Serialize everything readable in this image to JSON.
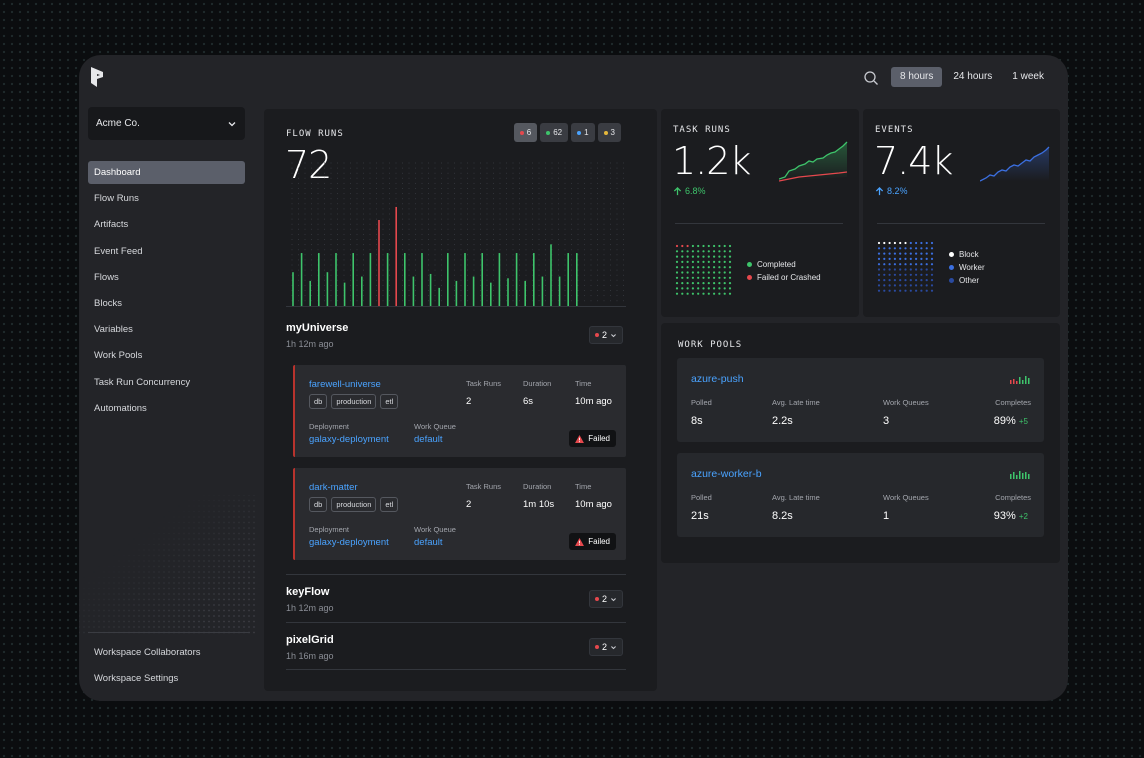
{
  "header": {
    "logo": "prefect-logo-icon",
    "time_ranges": [
      {
        "label": "8 hours",
        "active": true
      },
      {
        "label": "24 hours",
        "active": false
      },
      {
        "label": "1 week",
        "active": false
      }
    ]
  },
  "sidebar": {
    "workspace": "Acme Co.",
    "items": [
      {
        "label": "Dashboard",
        "active": true
      },
      {
        "label": "Flow Runs"
      },
      {
        "label": "Artifacts"
      },
      {
        "label": "Event Feed"
      },
      {
        "label": "Flows"
      },
      {
        "label": "Blocks"
      },
      {
        "label": "Variables"
      },
      {
        "label": "Work Pools"
      },
      {
        "label": "Task Run Concurrency"
      },
      {
        "label": "Automations"
      }
    ],
    "bottom_items": [
      {
        "label": "Workspace Collaborators"
      },
      {
        "label": "Workspace Settings"
      }
    ]
  },
  "flow_runs": {
    "title": "FLOW RUNS",
    "total": "72",
    "chips": [
      {
        "label": "6",
        "color": "#e5484d"
      },
      {
        "label": "62",
        "color": "#3ec46b"
      },
      {
        "label": "1",
        "color": "#4aa3ff"
      },
      {
        "label": "3",
        "color": "#e5b73b"
      }
    ],
    "bars": [
      {
        "v": 0.4,
        "s": "ok"
      },
      {
        "v": 0.62,
        "s": "ok"
      },
      {
        "v": 0.3,
        "s": "ok"
      },
      {
        "v": 0.62,
        "s": "ok"
      },
      {
        "v": 0.4,
        "s": "ok"
      },
      {
        "v": 0.62,
        "s": "ok"
      },
      {
        "v": 0.28,
        "s": "ok"
      },
      {
        "v": 0.62,
        "s": "ok"
      },
      {
        "v": 0.35,
        "s": "ok"
      },
      {
        "v": 0.62,
        "s": "ok"
      },
      {
        "v": 1.0,
        "s": "fail"
      },
      {
        "v": 0.62,
        "s": "ok"
      },
      {
        "v": 1.15,
        "s": "fail"
      },
      {
        "v": 0.62,
        "s": "ok"
      },
      {
        "v": 0.35,
        "s": "ok"
      },
      {
        "v": 0.62,
        "s": "ok"
      },
      {
        "v": 0.38,
        "s": "ok"
      },
      {
        "v": 0.22,
        "s": "ok"
      },
      {
        "v": 0.62,
        "s": "ok"
      },
      {
        "v": 0.3,
        "s": "ok"
      },
      {
        "v": 0.62,
        "s": "ok"
      },
      {
        "v": 0.35,
        "s": "ok"
      },
      {
        "v": 0.62,
        "s": "ok"
      },
      {
        "v": 0.28,
        "s": "ok"
      },
      {
        "v": 0.62,
        "s": "ok"
      },
      {
        "v": 0.33,
        "s": "ok"
      },
      {
        "v": 0.62,
        "s": "ok"
      },
      {
        "v": 0.3,
        "s": "ok"
      },
      {
        "v": 0.62,
        "s": "ok"
      },
      {
        "v": 0.35,
        "s": "ok"
      },
      {
        "v": 0.72,
        "s": "ok"
      },
      {
        "v": 0.35,
        "s": "ok"
      },
      {
        "v": 0.62,
        "s": "ok"
      },
      {
        "v": 0.62,
        "s": "ok"
      }
    ],
    "flows": [
      {
        "name": "myUniverse",
        "age": "1h 12m ago",
        "count": "2"
      },
      {
        "name": "keyFlow",
        "age": "1h 12m ago",
        "count": "2"
      },
      {
        "name": "pixelGrid",
        "age": "1h 16m ago",
        "count": "2"
      }
    ],
    "runs": [
      {
        "name": "farewell-universe",
        "tags": [
          "db",
          "production",
          "etl"
        ],
        "task_runs_label": "Task Runs",
        "task_runs": "2",
        "duration_label": "Duration",
        "duration": "6s",
        "time_label": "Time",
        "time": "10m ago",
        "deployment_label": "Deployment",
        "deployment": "galaxy-deployment",
        "queue_label": "Work Queue",
        "queue": "default",
        "state": "Failed"
      },
      {
        "name": "dark-matter",
        "tags": [
          "db",
          "production",
          "etl"
        ],
        "task_runs_label": "Task Runs",
        "task_runs": "2",
        "duration_label": "Duration",
        "duration": "1m 10s",
        "time_label": "Time",
        "time": "10m ago",
        "deployment_label": "Deployment",
        "deployment": "galaxy-deployment",
        "queue_label": "Work Queue",
        "queue": "default",
        "state": "Failed"
      }
    ]
  },
  "task_runs": {
    "title": "TASK RUNS",
    "total": "1.2k",
    "trend": "6.8%",
    "legend": [
      "Completed",
      "Failed or Crashed"
    ],
    "colors": {
      "completed": "#3ec46b",
      "failed": "#e5484d"
    }
  },
  "events": {
    "title": "EVENTS",
    "total": "7.4k",
    "trend": "8.2%",
    "legend": [
      "Block",
      "Worker",
      "Other"
    ]
  },
  "work_pools": {
    "title": "WORK POOLS",
    "pools": [
      {
        "name": "azure-push",
        "polled_label": "Polled",
        "polled": "8s",
        "late_label": "Avg. Late time",
        "late": "2.2s",
        "queues_label": "Work Queues",
        "queues": "3",
        "completes_label": "Completes",
        "completes": "89%",
        "delta": "+5"
      },
      {
        "name": "azure-worker-b",
        "polled_label": "Polled",
        "polled": "21s",
        "late_label": "Avg. Late time",
        "late": "8.2s",
        "queues_label": "Work Queues",
        "queues": "1",
        "completes_label": "Completes",
        "completes": "93%",
        "delta": "+2"
      }
    ]
  }
}
